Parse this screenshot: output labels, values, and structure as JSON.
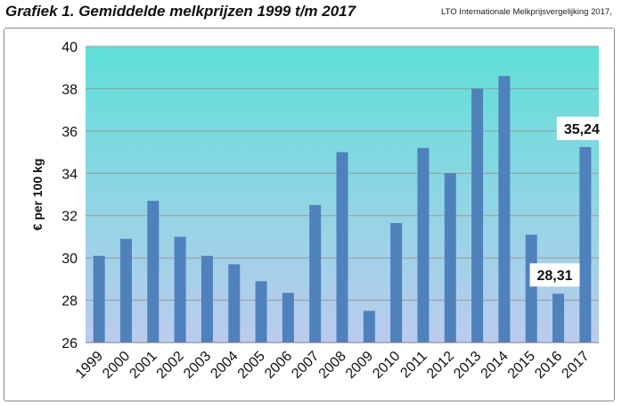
{
  "header": {
    "title": "Grafiek 1. Gemiddelde melkprijzen 1999 t/m 2017",
    "source": "LTO Internationale Melkprijsvergelijking 2017,"
  },
  "colors": {
    "bar": "#4f81bd",
    "plot_top": "#5fe0d8",
    "plot_bottom": "#bccbee",
    "gridline": "#9a9a9a"
  },
  "chart_data": {
    "type": "bar",
    "title": "",
    "xlabel": "",
    "ylabel": "€ per 100 kg",
    "ylim": [
      26,
      40
    ],
    "yticks": [
      26,
      28,
      30,
      32,
      34,
      36,
      38,
      40
    ],
    "grid": true,
    "categories": [
      "1999",
      "2000",
      "2001",
      "2002",
      "2003",
      "2004",
      "2005",
      "2006",
      "2007",
      "2008",
      "2009",
      "2010",
      "2011",
      "2012",
      "2013",
      "2014",
      "2015",
      "2016",
      "2017"
    ],
    "values": [
      30.1,
      30.9,
      32.7,
      31.0,
      30.1,
      29.7,
      28.9,
      28.35,
      32.5,
      35.0,
      27.5,
      31.65,
      35.2,
      34.0,
      38.0,
      38.6,
      31.1,
      28.31,
      35.24
    ],
    "annotations": [
      {
        "category": "2016",
        "text": "28,31"
      },
      {
        "category": "2017",
        "text": "35,24"
      }
    ]
  }
}
